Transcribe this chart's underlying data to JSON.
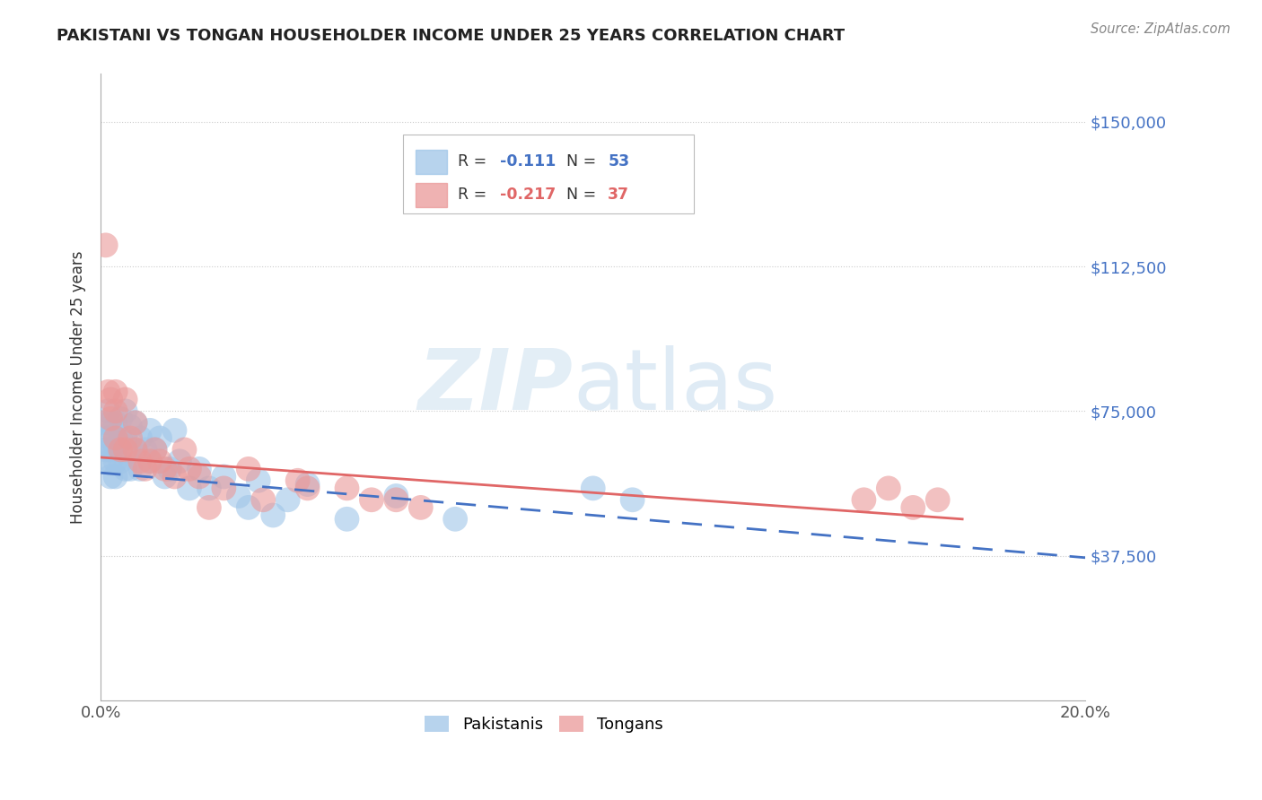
{
  "title": "PAKISTANI VS TONGAN HOUSEHOLDER INCOME UNDER 25 YEARS CORRELATION CHART",
  "source": "Source: ZipAtlas.com",
  "ylabel": "Householder Income Under 25 years",
  "xlim": [
    0.0,
    0.2
  ],
  "ylim": [
    0,
    162500
  ],
  "xtick_positions": [
    0.0,
    0.02,
    0.04,
    0.06,
    0.08,
    0.1,
    0.12,
    0.14,
    0.16,
    0.18,
    0.2
  ],
  "xticklabels": [
    "0.0%",
    "",
    "",
    "",
    "",
    "",
    "",
    "",
    "",
    "",
    "20.0%"
  ],
  "ytick_values": [
    37500,
    75000,
    112500,
    150000
  ],
  "ytick_labels": [
    "$37,500",
    "$75,000",
    "$112,500",
    "$150,000"
  ],
  "watermark": "ZIPatlas",
  "legend_r_pakistani": "-0.111",
  "legend_n_pakistani": "53",
  "legend_r_tongan": "-0.217",
  "legend_n_tongan": "37",
  "pakistani_color": "#9fc5e8",
  "tongan_color": "#ea9999",
  "pakistani_line_color": "#4472c4",
  "tongan_line_color": "#e06666",
  "pak_line_y0": 59000,
  "pak_line_y1": 37000,
  "ton_line_y0": 63000,
  "ton_line_y1": 47000,
  "pakistani_x": [
    0.0005,
    0.001,
    0.001,
    0.0015,
    0.0015,
    0.002,
    0.002,
    0.002,
    0.002,
    0.002,
    0.0025,
    0.003,
    0.003,
    0.003,
    0.003,
    0.003,
    0.004,
    0.004,
    0.004,
    0.005,
    0.005,
    0.005,
    0.006,
    0.006,
    0.006,
    0.007,
    0.007,
    0.008,
    0.008,
    0.009,
    0.01,
    0.01,
    0.011,
    0.012,
    0.013,
    0.014,
    0.015,
    0.016,
    0.018,
    0.02,
    0.022,
    0.025,
    0.028,
    0.03,
    0.032,
    0.035,
    0.038,
    0.042,
    0.05,
    0.06,
    0.072,
    0.1,
    0.108
  ],
  "pakistani_y": [
    62000,
    72000,
    65000,
    75000,
    68000,
    72000,
    68000,
    65000,
    62000,
    58000,
    70000,
    72000,
    68000,
    65000,
    62000,
    58000,
    73000,
    68000,
    62000,
    75000,
    68000,
    60000,
    71000,
    65000,
    60000,
    72000,
    65000,
    68000,
    60000,
    65000,
    70000,
    62000,
    65000,
    68000,
    58000,
    60000,
    70000,
    62000,
    55000,
    60000,
    55000,
    58000,
    53000,
    50000,
    57000,
    48000,
    52000,
    56000,
    47000,
    53000,
    47000,
    55000,
    52000
  ],
  "tongan_x": [
    0.001,
    0.0015,
    0.002,
    0.002,
    0.003,
    0.003,
    0.003,
    0.004,
    0.005,
    0.005,
    0.006,
    0.007,
    0.007,
    0.008,
    0.009,
    0.01,
    0.011,
    0.012,
    0.013,
    0.015,
    0.017,
    0.018,
    0.02,
    0.022,
    0.025,
    0.03,
    0.033,
    0.04,
    0.042,
    0.05,
    0.055,
    0.06,
    0.065,
    0.155,
    0.16,
    0.165,
    0.17
  ],
  "tongan_y": [
    118000,
    80000,
    78000,
    73000,
    80000,
    75000,
    68000,
    65000,
    78000,
    65000,
    68000,
    72000,
    65000,
    62000,
    60000,
    62000,
    65000,
    62000,
    60000,
    58000,
    65000,
    60000,
    58000,
    50000,
    55000,
    60000,
    52000,
    57000,
    55000,
    55000,
    52000,
    52000,
    50000,
    52000,
    55000,
    50000,
    52000
  ]
}
